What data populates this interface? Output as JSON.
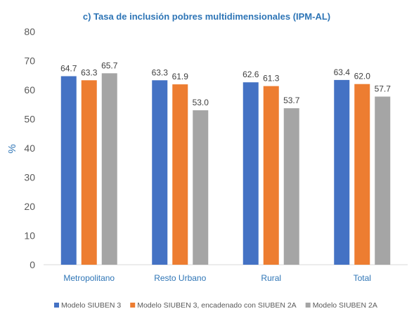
{
  "chart_data": {
    "type": "bar",
    "title": "c) Tasa de inclusión pobres multidimensionales (IPM-AL)",
    "xlabel": "",
    "ylabel": "%",
    "ylim": [
      0,
      80
    ],
    "yticks": [
      "0",
      "10",
      "20",
      "30",
      "40",
      "50",
      "60",
      "70",
      "80"
    ],
    "categories": [
      "Metropolitano",
      "Resto Urbano",
      "Rural",
      "Total"
    ],
    "series": [
      {
        "name": "Modelo SIUBEN 3",
        "color": "#4472C4",
        "values": [
          64.7,
          63.3,
          62.6,
          63.4
        ],
        "labels": [
          "64.7",
          "63.3",
          "62.6",
          "63.4"
        ]
      },
      {
        "name": "Modelo SIUBEN 3, encadenado con SIUBEN 2A",
        "color": "#ED7D31",
        "values": [
          63.3,
          61.9,
          61.3,
          62.0
        ],
        "labels": [
          "63.3",
          "61.9",
          "61.3",
          "62.0"
        ]
      },
      {
        "name": "Modelo SIUBEN 2A",
        "color": "#A5A5A5",
        "values": [
          65.7,
          53.0,
          53.7,
          57.7
        ],
        "labels": [
          "65.7",
          "53.0",
          "53.7",
          "57.7"
        ]
      }
    ],
    "grid": false,
    "legend_position": "bottom"
  }
}
